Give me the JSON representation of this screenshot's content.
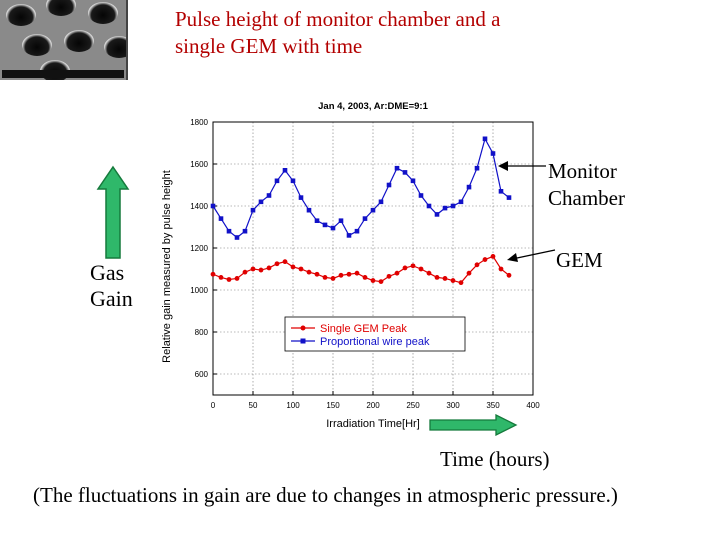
{
  "slide": {
    "title": "Pulse height of monitor chamber and a\nsingle GEM with time",
    "gas_gain_label": "Gas\nGain",
    "monitor_label": "Monitor\nChamber",
    "gem_label": "GEM",
    "time_label": "Time  (hours)",
    "footnote": "(The fluctuations in gain are due to changes in atmospheric pressure.)",
    "colors": {
      "title": "#b30000",
      "arrow_fill": "#2fb86a",
      "arrow_stroke": "#157a3c"
    }
  },
  "thumbnail": {
    "icon": "gem-microscope-photo-icon"
  },
  "chart_data": {
    "type": "line",
    "title": "Jan 4, 2003, Ar:DME=9:1",
    "xlabel": "Irradiation Time[Hr]",
    "ylabel": "Relative gain measured by pulse height",
    "xlim": [
      0,
      400
    ],
    "ylim": [
      500,
      1800
    ],
    "x_ticks": [
      "0",
      "50",
      "100",
      "150",
      "200",
      "250",
      "300",
      "350",
      "400"
    ],
    "y_ticks": [
      "600",
      "800",
      "1000",
      "1200",
      "1400",
      "1600",
      "1800"
    ],
    "grid": true,
    "legend_position": "bottom-right",
    "series": [
      {
        "name": "Single GEM Peak",
        "color": "#e00000",
        "marker": "circle",
        "x": [
          0,
          10,
          20,
          30,
          40,
          50,
          60,
          70,
          80,
          90,
          100,
          110,
          120,
          130,
          140,
          150,
          160,
          170,
          180,
          190,
          200,
          210,
          220,
          230,
          240,
          250,
          260,
          270,
          280,
          290,
          300,
          310,
          320,
          330,
          340,
          350,
          360,
          370
        ],
        "values": [
          1075,
          1060,
          1050,
          1055,
          1085,
          1100,
          1095,
          1105,
          1125,
          1135,
          1110,
          1100,
          1085,
          1075,
          1060,
          1055,
          1070,
          1075,
          1080,
          1060,
          1045,
          1040,
          1065,
          1080,
          1105,
          1115,
          1100,
          1080,
          1060,
          1055,
          1045,
          1035,
          1080,
          1120,
          1145,
          1160,
          1100,
          1070
        ]
      },
      {
        "name": "Proportional wire peak",
        "color": "#1111c8",
        "marker": "square",
        "x": [
          0,
          10,
          20,
          30,
          40,
          50,
          60,
          70,
          80,
          90,
          100,
          110,
          120,
          130,
          140,
          150,
          160,
          170,
          180,
          190,
          200,
          210,
          220,
          230,
          240,
          250,
          260,
          270,
          280,
          290,
          300,
          310,
          320,
          330,
          340,
          350,
          360,
          370
        ],
        "values": [
          1400,
          1340,
          1280,
          1250,
          1280,
          1380,
          1420,
          1450,
          1520,
          1570,
          1520,
          1440,
          1380,
          1330,
          1310,
          1295,
          1330,
          1260,
          1280,
          1340,
          1380,
          1420,
          1500,
          1580,
          1560,
          1520,
          1450,
          1400,
          1360,
          1390,
          1400,
          1420,
          1490,
          1580,
          1720,
          1650,
          1470,
          1440
        ]
      }
    ]
  }
}
